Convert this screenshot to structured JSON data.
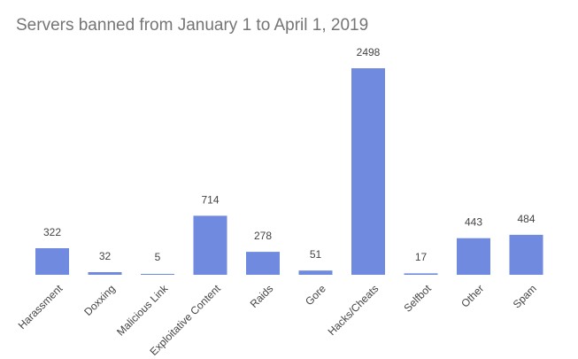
{
  "chart_data": {
    "type": "bar",
    "title": "Servers banned from January 1 to April 1, 2019",
    "xlabel": "",
    "ylabel": "",
    "categories": [
      "Harassment",
      "Doxxing",
      "Malicious Link",
      "Exploitative Content",
      "Raids",
      "Gore",
      "Hacks/Cheats",
      "Selfbot",
      "Other",
      "Spam"
    ],
    "values": [
      322,
      32,
      5,
      714,
      278,
      51,
      2498,
      17,
      443,
      484
    ],
    "ylim": [
      0,
      2498
    ],
    "grid": false,
    "data_labels": true,
    "bar_color": "#6f8ade"
  }
}
